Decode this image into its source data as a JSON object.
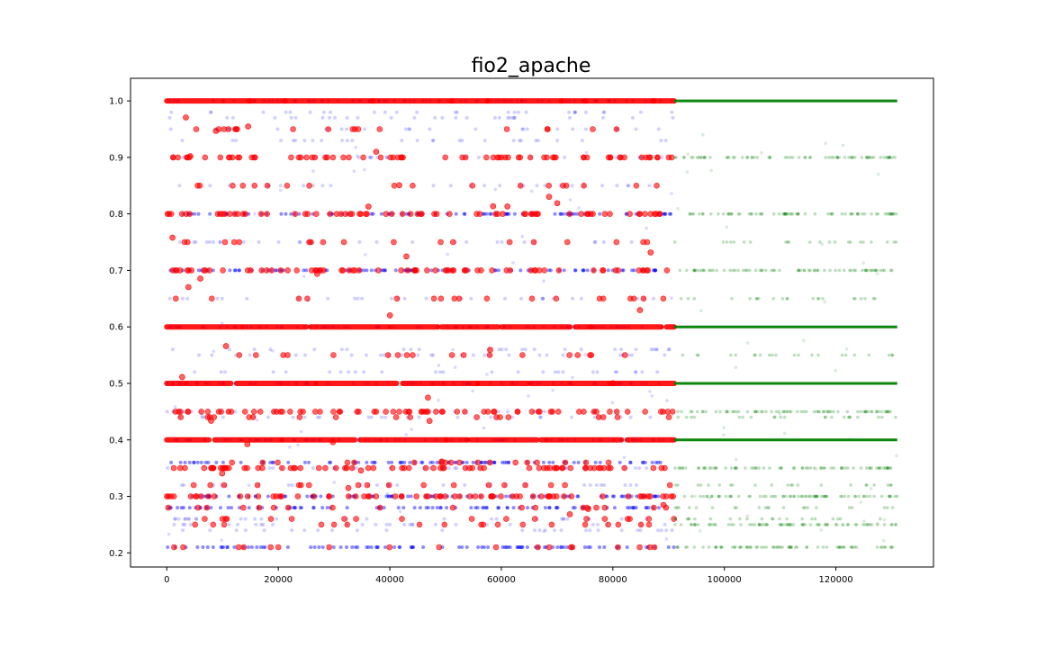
{
  "chart_data": {
    "type": "scatter",
    "title": "fio2_apache",
    "xlabel": "",
    "ylabel": "",
    "xlim": [
      -6500,
      137500
    ],
    "ylim": [
      0.175,
      1.04
    ],
    "x_ticks": [
      0,
      20000,
      40000,
      60000,
      80000,
      100000,
      120000
    ],
    "y_ticks": [
      0.2,
      0.3,
      0.4,
      0.5,
      0.6,
      0.7,
      0.8,
      0.9,
      1.0
    ],
    "x_tick_labels": [
      "0",
      "20000",
      "40000",
      "60000",
      "80000",
      "100000",
      "120000"
    ],
    "y_tick_labels": [
      "0.2",
      "0.3",
      "0.4",
      "0.5",
      "0.6",
      "0.7",
      "0.8",
      "0.9",
      "1.0"
    ],
    "grid": false,
    "legend": "none",
    "colors": {
      "series_1": "#0000ff",
      "series_2": "#ff0000",
      "series_3": "#008000"
    },
    "series": [
      {
        "color": "#0000ff",
        "x_range": [
          0,
          91000
        ],
        "y_levels": [
          1.0,
          0.98,
          0.97,
          0.95,
          0.93,
          0.9,
          0.85,
          0.8,
          0.75,
          0.7,
          0.65,
          0.6,
          0.56,
          0.55,
          0.52,
          0.5,
          0.45,
          0.44,
          0.4,
          0.36,
          0.35,
          0.32,
          0.3,
          0.28,
          0.26,
          0.25,
          0.24,
          0.21
        ],
        "dense_levels": [
          1.0,
          0.8,
          0.7,
          0.6,
          0.5,
          0.4,
          0.36,
          0.3,
          0.28,
          0.21
        ]
      },
      {
        "color": "#ff0000",
        "x_range": [
          0,
          91000
        ],
        "y_levels": [
          1.0,
          0.95,
          0.9,
          0.85,
          0.8,
          0.75,
          0.7,
          0.65,
          0.6,
          0.55,
          0.5,
          0.45,
          0.44,
          0.4,
          0.36,
          0.35,
          0.32,
          0.3,
          0.28,
          0.26,
          0.25,
          0.21
        ],
        "solid_levels": [
          1.0,
          0.6,
          0.5,
          0.4
        ]
      },
      {
        "color": "#008000",
        "x_range": [
          91000,
          131000
        ],
        "y_levels": [
          1.0,
          0.9,
          0.8,
          0.75,
          0.7,
          0.65,
          0.6,
          0.55,
          0.5,
          0.45,
          0.44,
          0.4,
          0.35,
          0.32,
          0.3,
          0.28,
          0.26,
          0.25,
          0.21
        ],
        "solid_levels": [
          1.0,
          0.6,
          0.5,
          0.4
        ]
      }
    ]
  }
}
